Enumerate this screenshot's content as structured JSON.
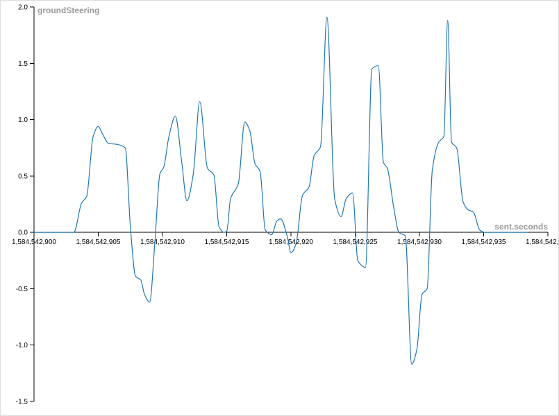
{
  "chart_data": {
    "type": "line",
    "title": "",
    "xlabel": "sent.seconds",
    "ylabel": "groundSteering",
    "xlim": [
      1584542900,
      1584542940
    ],
    "ylim": [
      -1.5,
      2.0
    ],
    "grid": false,
    "legend": "none",
    "line_color": "#1f77b4",
    "x_ticks": [
      {
        "value": 1584542900,
        "label": "1,584,542,900"
      },
      {
        "value": 1584542905,
        "label": "1,584,542,905"
      },
      {
        "value": 1584542910,
        "label": "1,584,542,910"
      },
      {
        "value": 1584542915,
        "label": "1,584,542,915"
      },
      {
        "value": 1584542920,
        "label": "1,584,542,920"
      },
      {
        "value": 1584542925,
        "label": "1,584,542,925"
      },
      {
        "value": 1584542930,
        "label": "1,584,542,930"
      },
      {
        "value": 1584542935,
        "label": "1,584,542,935"
      },
      {
        "value": 1584542940,
        "label": "1,584,542,940"
      }
    ],
    "y_ticks": [
      {
        "value": -1.5,
        "label": "-1.5"
      },
      {
        "value": -1.0,
        "label": "-1.0"
      },
      {
        "value": -0.5,
        "label": "-0.5"
      },
      {
        "value": 0.0,
        "label": "0.0"
      },
      {
        "value": 0.5,
        "label": "0.5"
      },
      {
        "value": 1.0,
        "label": "1.0"
      },
      {
        "value": 1.5,
        "label": "1.5"
      },
      {
        "value": 2.0,
        "label": "2.0"
      }
    ],
    "series": [
      {
        "x": [
          1584542900.0,
          1584542903.1,
          1584542903.7,
          1584542904.1,
          1584542904.6,
          1584542905.0,
          1584542905.3,
          1584542905.8,
          1584542906.5,
          1584542907.1,
          1584542907.5,
          1584542907.9,
          1584542908.3,
          1584542908.6,
          1584542909.0,
          1584542909.4,
          1584542909.8,
          1584542910.1,
          1584542910.5,
          1584542911.0,
          1584542911.5,
          1584542911.9,
          1584542912.4,
          1584542912.9,
          1584542913.5,
          1584542914.0,
          1584542914.4,
          1584542914.8,
          1584542915.0,
          1584542915.3,
          1584542915.9,
          1584542916.4,
          1584542916.8,
          1584542917.2,
          1584542917.6,
          1584542918.0,
          1584542918.5,
          1584542918.9,
          1584542919.2,
          1584542919.7,
          1584542920.0,
          1584542920.4,
          1584542920.9,
          1584542921.4,
          1584542921.8,
          1584542922.3,
          1584542922.8,
          1584542923.4,
          1584542923.9,
          1584542924.3,
          1584542924.8,
          1584542925.2,
          1584542925.8,
          1584542926.3,
          1584542926.8,
          1584542927.2,
          1584542927.5,
          1584542928.0,
          1584542928.4,
          1584542928.9,
          1584542929.4,
          1584542929.8,
          1584542930.2,
          1584542930.6,
          1584542931.0,
          1584542931.5,
          1584542931.9,
          1584542932.2,
          1584542932.5,
          1584542932.9,
          1584542933.4,
          1584542933.8,
          1584542934.2,
          1584542934.7,
          1584542935.1,
          1584542935.6,
          1584542936.0,
          1584542936.6,
          1584542937.0,
          1584542938.5
        ],
        "y": [
          0.0,
          0.0,
          0.26,
          0.32,
          0.85,
          0.94,
          0.88,
          0.79,
          0.78,
          0.75,
          0.05,
          -0.39,
          -0.42,
          -0.55,
          -0.62,
          -0.1,
          0.52,
          0.58,
          0.85,
          1.03,
          0.62,
          0.28,
          0.52,
          1.16,
          0.57,
          0.51,
          0.05,
          0.0,
          0.01,
          0.3,
          0.43,
          0.98,
          0.9,
          0.61,
          0.54,
          0.02,
          -0.02,
          0.1,
          0.12,
          -0.03,
          -0.18,
          -0.1,
          0.33,
          0.4,
          0.68,
          0.76,
          1.91,
          0.3,
          0.14,
          0.3,
          0.35,
          -0.25,
          -0.31,
          1.45,
          1.48,
          0.62,
          0.57,
          0.22,
          0.0,
          -0.03,
          -1.17,
          -1.04,
          -0.55,
          -0.5,
          0.55,
          0.8,
          0.85,
          1.88,
          0.8,
          0.75,
          0.27,
          0.2,
          0.18,
          0.02,
          0.0,
          0.0,
          0.0,
          0.0,
          0.0,
          0.0
        ]
      }
    ]
  }
}
